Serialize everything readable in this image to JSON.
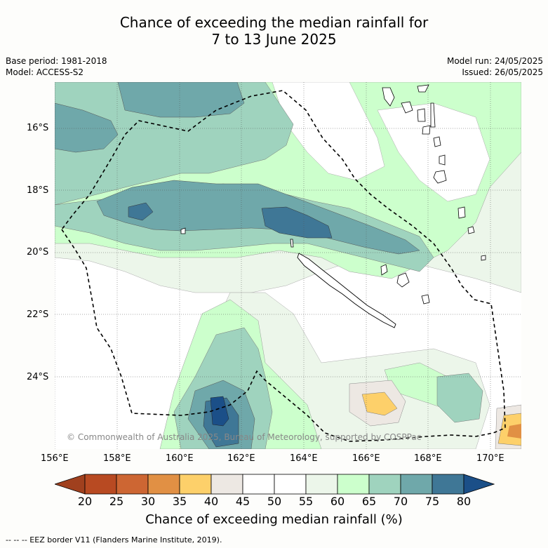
{
  "title_line1": "Chance of exceeding the median rainfall for",
  "title_line2": "7 to 13 June 2025",
  "base_period": "Base period: 1981-2018",
  "model": "Model: ACCESS-S2",
  "model_run": "Model run: 24/05/2025",
  "issued": "Issued: 26/05/2025",
  "copyright": "© Commonwealth of Australia 2025, Bureau of Meteorology, supported by COSPPac",
  "lat_labels": [
    "16°S",
    "18°S",
    "20°S",
    "22°S",
    "24°S"
  ],
  "lon_labels": [
    "156°E",
    "158°E",
    "160°E",
    "162°E",
    "164°E",
    "166°E",
    "168°E",
    "170°E"
  ],
  "colorbar": {
    "ticks": [
      "20",
      "25",
      "30",
      "35",
      "40",
      "45",
      "50",
      "55",
      "60",
      "65",
      "70",
      "75",
      "80"
    ],
    "colors": [
      "#a0401e",
      "#b84a22",
      "#cd6633",
      "#e19044",
      "#fdd06a",
      "#ede8e3",
      "#ffffff",
      "#ffffff",
      "#ecf6ea",
      "#ccffcc",
      "#9fd3be",
      "#6fa8aa",
      "#3f7796",
      "#1b4f88"
    ],
    "title": "Chance of exceeding median rainfall (%)"
  },
  "legend_text": "-- -- -- EEZ border V11 (Flanders Marine Institute, 2019).",
  "colors": {
    "c45_55": "#ffffff",
    "c55_60": "#ecf6ea",
    "c60_65": "#ccffcc",
    "c65_70": "#9fd3be",
    "c70_75": "#6fa8aa",
    "c75_80": "#3f7796",
    "c80": "#1b4f88",
    "c40_45": "#ede8e3",
    "c35_40": "#fdd06a",
    "c30_35": "#e19044"
  }
}
